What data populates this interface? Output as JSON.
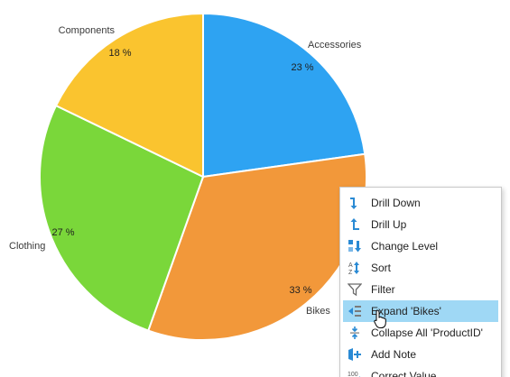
{
  "colors": {
    "accessories": "#2ea3f2",
    "bikes": "#f2983a",
    "clothing": "#7ad73a",
    "components": "#fac42f",
    "menu_hover": "#9fd8f5",
    "icon_blue": "#2a8ad4"
  },
  "chart_data": {
    "type": "pie",
    "title": "",
    "categories": [
      "Accessories",
      "Bikes",
      "Clothing",
      "Components"
    ],
    "values": [
      23,
      33,
      27,
      18
    ],
    "value_labels": [
      "23 %",
      "33 %",
      "27 %",
      "18 %"
    ],
    "start_angle_deg": 0,
    "direction": "clockwise"
  },
  "context_menu": {
    "items": [
      {
        "label": "Drill Down",
        "icon": "drill-down-icon"
      },
      {
        "label": "Drill Up",
        "icon": "drill-up-icon"
      },
      {
        "label": "Change Level",
        "icon": "change-level-icon"
      },
      {
        "label": "Sort",
        "icon": "sort-az-icon"
      },
      {
        "label": "Filter",
        "icon": "filter-icon"
      },
      {
        "label": "Expand 'Bikes'",
        "icon": "expand-icon",
        "hovered": true
      },
      {
        "label": "Collapse All 'ProductID'",
        "icon": "collapse-all-icon"
      },
      {
        "label": "Add Note",
        "icon": "add-note-icon"
      },
      {
        "label": "Correct Value",
        "icon": "correct-value-icon"
      }
    ]
  }
}
